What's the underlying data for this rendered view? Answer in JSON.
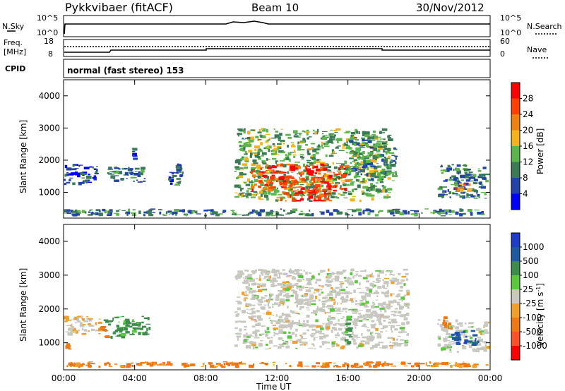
{
  "header": {
    "title": "Pykkvibaer (fitACF)",
    "beam": "Beam 10",
    "date": "30/Nov/2012"
  },
  "panels": {
    "nsky": {
      "left_label": "N.Sky",
      "right_label": "N.Search",
      "left_ticks": [
        "10^5",
        "10^0"
      ],
      "right_ticks": [
        "10^5",
        "10^0"
      ]
    },
    "freq": {
      "left_label_1": "Freq.",
      "left_label_2": "[MHz]",
      "right_label": "Nave",
      "left_ticks": [
        "18",
        "8"
      ],
      "right_ticks": [
        "60",
        "0"
      ]
    },
    "cpid": {
      "label": "CPID",
      "text": "normal (fast stereo) 153"
    }
  },
  "colors": {
    "power_scale": [
      "#0000ff",
      "#2244aa",
      "#3a7a55",
      "#5ab54a",
      "#f6b21a",
      "#f08010",
      "#ff4000",
      "#ff0000"
    ],
    "velocity_scale": [
      "#1e3cc8",
      "#1e5aa0",
      "#3c8c4b",
      "#5ac83c",
      "#c8c8c0",
      "#f0a028",
      "#f07814",
      "#ff5028",
      "#ff0000"
    ]
  },
  "chart_data": [
    {
      "type": "heatmap",
      "name": "power",
      "ylabel": "Slant Range [km]",
      "ylim": [
        200,
        4500
      ],
      "xlim_hours": [
        0,
        24
      ],
      "y_ticks": [
        1000,
        2000,
        3000,
        4000
      ],
      "colorbar": {
        "label": "Power [dB]",
        "ticks": [
          "28",
          "24",
          "20",
          "16",
          "12",
          "8",
          "4"
        ],
        "range": [
          0,
          32
        ]
      },
      "regions": [
        {
          "t0": 0.0,
          "t1": 2.0,
          "r0": 1200,
          "r1": 1900,
          "level": 6
        },
        {
          "t0": 2.3,
          "t1": 4.8,
          "r0": 1300,
          "r1": 1800,
          "level": 9
        },
        {
          "t0": 3.8,
          "t1": 4.2,
          "r0": 1900,
          "r1": 2400,
          "level": 7
        },
        {
          "t0": 5.8,
          "t1": 6.8,
          "r0": 1200,
          "r1": 1900,
          "level": 8
        },
        {
          "t0": 0.0,
          "t1": 24.0,
          "r0": 250,
          "r1": 500,
          "level": 10
        },
        {
          "t0": 9.6,
          "t1": 18.5,
          "r0": 700,
          "r1": 3000,
          "level": 13
        },
        {
          "t0": 10.5,
          "t1": 16.2,
          "r0": 1000,
          "r1": 1900,
          "level": 26
        },
        {
          "t0": 12.0,
          "t1": 15.2,
          "r0": 700,
          "r1": 1100,
          "level": 27
        },
        {
          "t0": 16.0,
          "t1": 18.8,
          "r0": 1300,
          "r1": 2800,
          "level": 11
        },
        {
          "t0": 21.0,
          "t1": 24.0,
          "r0": 800,
          "r1": 1900,
          "level": 9
        },
        {
          "t0": 22.0,
          "t1": 23.0,
          "r0": 1000,
          "r1": 1300,
          "level": 22
        }
      ]
    },
    {
      "type": "heatmap",
      "name": "velocity",
      "ylabel": "Slant Range [km]",
      "xlabel": "Time UT",
      "ylim": [
        200,
        4500
      ],
      "xlim_hours": [
        0,
        24
      ],
      "x_ticks": [
        "00:00",
        "04:00",
        "08:00",
        "12:00",
        "16:00",
        "20:00",
        "00:00"
      ],
      "y_ticks": [
        1000,
        2000,
        3000,
        4000
      ],
      "colorbar": {
        "label": "Velocity [m s^-1]",
        "ticks": [
          "1000",
          "500",
          "100",
          "25",
          "-25",
          "-100",
          "-500",
          "-1000"
        ],
        "range": [
          -1500,
          1500
        ]
      },
      "regions": [
        {
          "t0": 0.0,
          "t1": 2.2,
          "r0": 1200,
          "r1": 1800,
          "value": -20
        },
        {
          "t0": 0.0,
          "t1": 0.6,
          "r0": 750,
          "r1": 1000,
          "value": -300
        },
        {
          "t0": 2.2,
          "t1": 5.0,
          "r0": 1100,
          "r1": 1800,
          "value": 150
        },
        {
          "t0": 2.0,
          "t1": 2.6,
          "r0": 1100,
          "r1": 1500,
          "value": -300
        },
        {
          "t0": 0.0,
          "t1": 24.0,
          "r0": 250,
          "r1": 450,
          "value": -150
        },
        {
          "t0": 9.6,
          "t1": 19.5,
          "r0": 800,
          "r1": 3200,
          "value": 0
        },
        {
          "t0": 15.8,
          "t1": 16.3,
          "r0": 900,
          "r1": 1800,
          "value": 150
        },
        {
          "t0": 21.0,
          "t1": 24.0,
          "r0": 700,
          "r1": 1700,
          "value": 0
        },
        {
          "t0": 21.8,
          "t1": 23.4,
          "r0": 900,
          "r1": 1400,
          "value": 700
        },
        {
          "t0": 21.3,
          "t1": 21.9,
          "r0": 1400,
          "r1": 1800,
          "value": -300
        }
      ]
    }
  ]
}
